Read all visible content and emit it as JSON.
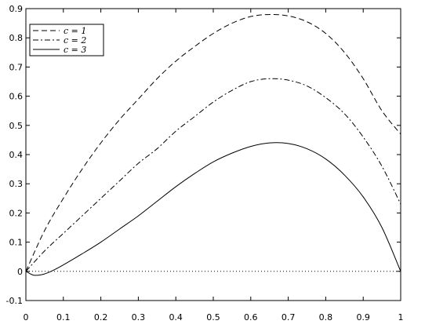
{
  "chart_data": {
    "type": "line",
    "xlim": [
      0,
      1
    ],
    "ylim": [
      -0.1,
      0.9
    ],
    "x_ticks": [
      0,
      0.1,
      0.2,
      0.3,
      0.4,
      0.5,
      0.6,
      0.7,
      0.8,
      0.9,
      1
    ],
    "x_tick_labels": [
      "0",
      "0.1",
      "0.2",
      "0.3",
      "0.4",
      "0.5",
      "0.6",
      "0.7",
      "0.8",
      "0.9",
      "1"
    ],
    "y_ticks": [
      -0.1,
      0,
      0.1,
      0.2,
      0.3,
      0.4,
      0.5,
      0.6,
      0.7,
      0.8,
      0.9
    ],
    "y_tick_labels": [
      "-0.1",
      "0",
      "0.1",
      "0.2",
      "0.3",
      "0.4",
      "0.5",
      "0.6",
      "0.7",
      "0.8",
      "0.9"
    ],
    "grid": false,
    "legend_position": "top-left",
    "reference_line": {
      "y": 0,
      "style": "dotted"
    },
    "series": [
      {
        "name": "c = 1",
        "style": "dashed",
        "color": "#000000",
        "x": [
          0,
          0.05,
          0.1,
          0.15,
          0.2,
          0.25,
          0.3,
          0.35,
          0.4,
          0.45,
          0.5,
          0.55,
          0.6,
          0.65,
          0.7,
          0.75,
          0.8,
          0.85,
          0.9,
          0.95,
          1
        ],
        "y": [
          0,
          0.14,
          0.25,
          0.35,
          0.44,
          0.52,
          0.59,
          0.66,
          0.72,
          0.77,
          0.815,
          0.85,
          0.873,
          0.88,
          0.875,
          0.855,
          0.815,
          0.75,
          0.66,
          0.55,
          0.47
        ]
      },
      {
        "name": "c = 2",
        "style": "dashdot",
        "color": "#000000",
        "x": [
          0,
          0.05,
          0.1,
          0.15,
          0.2,
          0.25,
          0.3,
          0.35,
          0.4,
          0.45,
          0.5,
          0.55,
          0.6,
          0.65,
          0.7,
          0.75,
          0.8,
          0.85,
          0.9,
          0.95,
          1
        ],
        "y": [
          0,
          0.07,
          0.13,
          0.19,
          0.25,
          0.31,
          0.37,
          0.42,
          0.48,
          0.53,
          0.58,
          0.62,
          0.65,
          0.66,
          0.655,
          0.635,
          0.595,
          0.54,
          0.46,
          0.36,
          0.23
        ]
      },
      {
        "name": "c = 3",
        "style": "solid",
        "color": "#000000",
        "x": [
          0,
          0.02,
          0.04,
          0.06,
          0.08,
          0.1,
          0.15,
          0.2,
          0.25,
          0.3,
          0.35,
          0.4,
          0.45,
          0.5,
          0.55,
          0.6,
          0.65,
          0.7,
          0.75,
          0.8,
          0.85,
          0.9,
          0.95,
          1
        ],
        "y": [
          0,
          -0.013,
          -0.012,
          -0.004,
          0.008,
          0.022,
          0.06,
          0.1,
          0.145,
          0.19,
          0.24,
          0.29,
          0.335,
          0.375,
          0.405,
          0.428,
          0.44,
          0.438,
          0.42,
          0.385,
          0.33,
          0.255,
          0.15,
          0
        ]
      }
    ]
  }
}
